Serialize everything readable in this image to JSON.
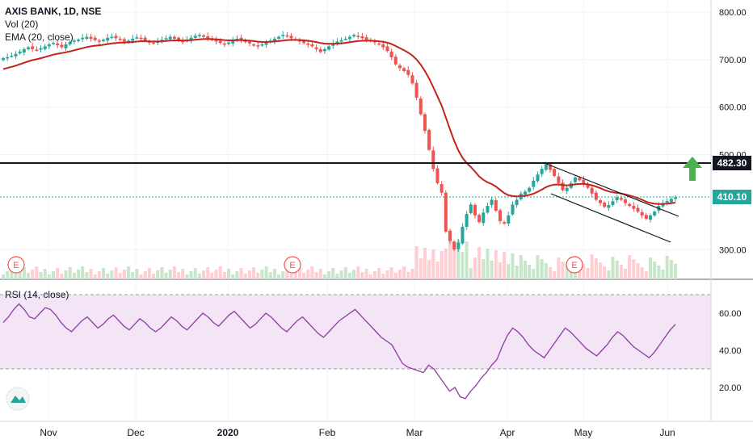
{
  "header": {
    "title": "AXIS BANK, 1D, NSE",
    "vol_label": "Vol (20)",
    "ema_label": "EMA (20, close)"
  },
  "rsi": {
    "label": "RSI (14, close)",
    "upper_band": 70,
    "lower_band": 30
  },
  "price_labels": {
    "resistance": "482.30",
    "last": "410.10"
  },
  "earnings_marker": "E",
  "colors": {
    "up": "#26a69a",
    "down": "#ef5350",
    "ema": "#c2231b",
    "rsi": "#8e3aa3",
    "rsi_band": "#f3e5f5",
    "resistance": "#131722",
    "last_price": "#26a69a",
    "arrow": "#4caf50"
  },
  "chart_data": [
    {
      "type": "candlestick",
      "title": "AXIS BANK, 1D, NSE",
      "y_ticks": [
        "800.00",
        "700.00",
        "600.00",
        "500.00",
        "300.00"
      ],
      "x_ticks": [
        "Nov",
        "Dec",
        "2020",
        "Feb",
        "Mar",
        "Apr",
        "May",
        "Jun"
      ],
      "ylim": [
        245,
        820
      ],
      "resistance_level": 482.3,
      "last_price": 410.1,
      "earnings_markers": [
        "Oct",
        "Jan",
        "Apr"
      ],
      "series": [
        {
          "name": "EMA (20, close)",
          "kind": "line"
        },
        {
          "name": "Vol (20)",
          "kind": "volume"
        }
      ],
      "closes_approx": [
        703,
        705,
        708,
        712,
        717,
        722,
        726,
        722,
        720,
        724,
        728,
        732,
        735,
        730,
        726,
        732,
        737,
        740,
        742,
        746,
        748,
        744,
        741,
        738,
        742,
        746,
        748,
        745,
        742,
        738,
        740,
        744,
        747,
        745,
        740,
        736,
        734,
        738,
        742,
        745,
        748,
        744,
        740,
        738,
        742,
        746,
        750,
        752,
        748,
        745,
        742,
        738,
        735,
        732,
        736,
        740,
        744,
        741,
        737,
        734,
        730,
        728,
        732,
        736,
        740,
        744,
        748,
        752,
        749,
        745,
        742,
        738,
        735,
        731,
        728,
        722,
        716,
        722,
        728,
        734,
        738,
        741,
        744,
        748,
        752,
        749,
        745,
        742,
        739,
        736,
        732,
        726,
        718,
        705,
        690,
        682,
        676,
        668,
        650,
        620,
        585,
        550,
        510,
        470,
        440,
        420,
        338,
        318,
        300,
        315,
        348,
        375,
        395,
        372,
        358,
        378,
        392,
        405,
        382,
        360,
        355,
        372,
        395,
        405,
        418,
        422,
        430,
        445,
        458,
        470,
        480,
        468,
        455,
        440,
        425,
        430,
        440,
        452,
        446,
        438,
        430,
        418,
        405,
        398,
        390,
        394,
        402,
        410,
        405,
        398,
        392,
        386,
        380,
        372,
        365,
        372,
        380,
        392,
        398,
        402,
        407,
        410
      ]
    },
    {
      "type": "line",
      "title": "RSI (14, close)",
      "y_ticks": [
        "60.00",
        "40.00",
        "20.00"
      ],
      "ylim": [
        5,
        75
      ],
      "values": [
        55,
        58,
        62,
        65,
        62,
        58,
        57,
        60,
        63,
        62,
        59,
        55,
        52,
        50,
        53,
        56,
        58,
        55,
        52,
        54,
        57,
        59,
        56,
        53,
        51,
        54,
        57,
        55,
        52,
        50,
        52,
        55,
        58,
        56,
        53,
        51,
        54,
        57,
        60,
        58,
        55,
        53,
        56,
        59,
        61,
        58,
        55,
        52,
        54,
        57,
        60,
        58,
        55,
        52,
        50,
        53,
        56,
        58,
        55,
        52,
        49,
        47,
        50,
        53,
        56,
        58,
        60,
        62,
        59,
        56,
        53,
        50,
        47,
        45,
        43,
        38,
        33,
        31,
        30,
        29,
        28,
        32,
        30,
        26,
        22,
        18,
        20,
        15,
        14,
        18,
        21,
        25,
        28,
        32,
        35,
        42,
        48,
        52,
        50,
        47,
        43,
        40,
        38,
        36,
        40,
        44,
        48,
        52,
        50,
        47,
        44,
        41,
        39,
        37,
        40,
        43,
        47,
        50,
        48,
        45,
        42,
        40,
        38,
        36,
        39,
        43,
        47,
        51,
        54
      ]
    }
  ]
}
